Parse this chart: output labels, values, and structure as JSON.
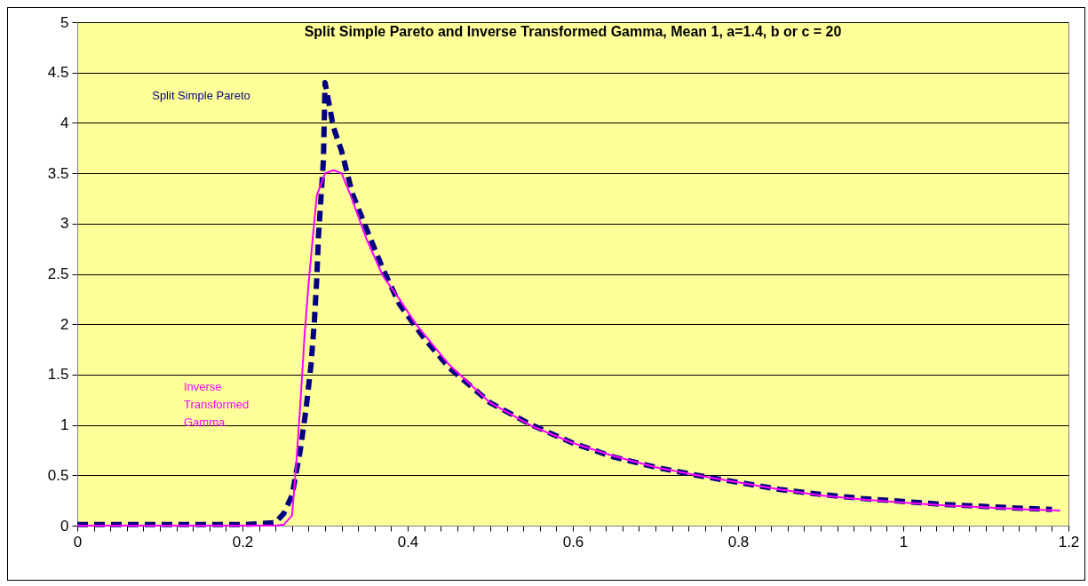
{
  "chart_data": {
    "type": "line",
    "title": "Split Simple Pareto and Inverse Transformed Gamma, Mean 1, a=1.4, b or c = 20",
    "xlim": [
      0,
      1.2
    ],
    "xticks": [
      0,
      {
        "value": 0.02,
        "label": null
      },
      {
        "value": 0.04,
        "label": null
      },
      {
        "value": 0.06,
        "label": null
      },
      {
        "value": 0.08,
        "label": null
      },
      {
        "value": 0.1,
        "label": null
      },
      {
        "value": 0.12,
        "label": null
      },
      {
        "value": 0.14,
        "label": null
      },
      {
        "value": 0.16,
        "label": null
      },
      {
        "value": 0.18,
        "label": null
      },
      0.2,
      {
        "value": 0.22,
        "label": null
      },
      {
        "value": 0.24,
        "label": null
      },
      {
        "value": 0.26,
        "label": null
      },
      {
        "value": 0.28,
        "label": null
      },
      {
        "value": 0.3,
        "label": null
      },
      {
        "value": 0.32,
        "label": null
      },
      {
        "value": 0.34,
        "label": null
      },
      {
        "value": 0.36,
        "label": null
      },
      {
        "value": 0.38,
        "label": null
      },
      0.4,
      {
        "value": 0.42,
        "label": null
      },
      {
        "value": 0.44,
        "label": null
      },
      {
        "value": 0.46,
        "label": null
      },
      {
        "value": 0.48,
        "label": null
      },
      {
        "value": 0.5,
        "label": null
      },
      {
        "value": 0.52,
        "label": null
      },
      {
        "value": 0.54,
        "label": null
      },
      {
        "value": 0.56,
        "label": null
      },
      {
        "value": 0.58,
        "label": null
      },
      0.6,
      {
        "value": 0.62,
        "label": null
      },
      {
        "value": 0.64,
        "label": null
      },
      {
        "value": 0.66,
        "label": null
      },
      {
        "value": 0.68,
        "label": null
      },
      {
        "value": 0.7,
        "label": null
      },
      {
        "value": 0.72,
        "label": null
      },
      {
        "value": 0.74,
        "label": null
      },
      {
        "value": 0.76,
        "label": null
      },
      {
        "value": 0.78,
        "label": null
      },
      0.8,
      {
        "value": 0.82,
        "label": null
      },
      {
        "value": 0.84,
        "label": null
      },
      {
        "value": 0.86,
        "label": null
      },
      {
        "value": 0.88,
        "label": null
      },
      {
        "value": 0.9,
        "label": null
      },
      {
        "value": 0.92,
        "label": null
      },
      {
        "value": 0.94,
        "label": null
      },
      {
        "value": 0.96,
        "label": null
      },
      {
        "value": 0.98,
        "label": null
      },
      1,
      {
        "value": 1.02,
        "label": null
      },
      {
        "value": 1.04,
        "label": null
      },
      {
        "value": 1.06,
        "label": null
      },
      {
        "value": 1.08,
        "label": null
      },
      {
        "value": 1.1,
        "label": null
      },
      {
        "value": 1.12,
        "label": null
      },
      {
        "value": 1.14,
        "label": null
      },
      {
        "value": 1.16,
        "label": null
      },
      {
        "value": 1.18,
        "label": null
      },
      1.2
    ],
    "ylim": [
      0,
      5
    ],
    "yticks": [
      0,
      0.5,
      1,
      1.5,
      2,
      2.5,
      3,
      3.5,
      4,
      4.5,
      5
    ],
    "grid": "y",
    "marker": "none",
    "series": [
      {
        "name": "Split Simple Pareto",
        "color": "#000080",
        "line_style": "dashed",
        "x": [
          0,
          0.1,
          0.2,
          0.22,
          0.24,
          0.25,
          0.26,
          0.27,
          0.277,
          0.283,
          0.287,
          0.29,
          0.292,
          0.295,
          0.298,
          0.3,
          0.31,
          0.32,
          0.333,
          0.35,
          0.37,
          0.39,
          0.42,
          0.45,
          0.5,
          0.55,
          0.6,
          0.65,
          0.7,
          0.75,
          0.8,
          0.85,
          0.9,
          0.95,
          1.0,
          1.05,
          1.1,
          1.15,
          1.18
        ],
        "values": [
          0.01,
          0.01,
          0.01,
          0.02,
          0.03,
          0.12,
          0.3,
          0.75,
          1.16,
          1.6,
          2.02,
          2.46,
          2.87,
          3.25,
          3.63,
          4.4,
          3.96,
          3.72,
          3.3,
          2.95,
          2.55,
          2.2,
          1.86,
          1.57,
          1.22,
          1.0,
          0.82,
          0.68,
          0.58,
          0.5,
          0.43,
          0.36,
          0.31,
          0.27,
          0.24,
          0.21,
          0.19,
          0.17,
          0.16
        ]
      },
      {
        "name": "Inverse Transformed Gamma",
        "color": "#ff00ff",
        "line_style": "solid",
        "x": [
          0,
          0.2,
          0.24,
          0.25,
          0.26,
          0.265,
          0.27,
          0.275,
          0.28,
          0.285,
          0.29,
          0.3,
          0.31,
          0.32,
          0.33,
          0.35,
          0.37,
          0.39,
          0.41,
          0.45,
          0.5,
          0.55,
          0.6,
          0.65,
          0.7,
          0.75,
          0.8,
          0.85,
          0.9,
          0.95,
          1.0,
          1.05,
          1.1,
          1.15,
          1.19
        ],
        "values": [
          0,
          0,
          0,
          0.01,
          0.1,
          0.6,
          1.2,
          1.87,
          2.4,
          2.85,
          3.28,
          3.5,
          3.53,
          3.5,
          3.3,
          2.85,
          2.48,
          2.25,
          2.0,
          1.6,
          1.22,
          0.99,
          0.82,
          0.69,
          0.58,
          0.5,
          0.43,
          0.36,
          0.3,
          0.26,
          0.23,
          0.2,
          0.18,
          0.16,
          0.15
        ]
      }
    ]
  }
}
